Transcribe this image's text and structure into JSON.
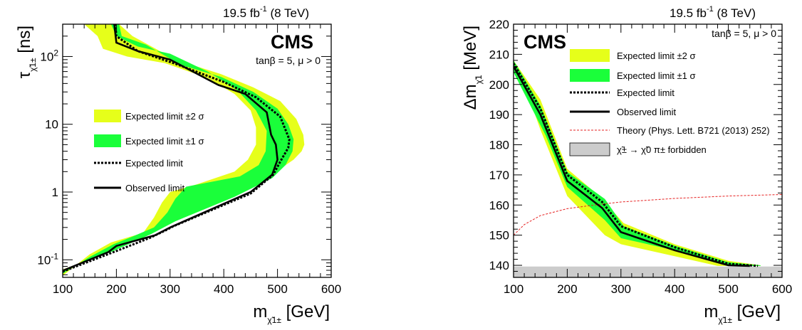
{
  "colors": {
    "band2": "#e6ff1a",
    "band1": "#1aff3a",
    "theory": "#e62020",
    "forbidden": "#cccccc",
    "line": "#000000"
  },
  "chart_data": [
    {
      "type": "line",
      "lumi": "19.5 fb-1 (8 TeV)",
      "lumi_main": "19.5 fb",
      "lumi_exp": "-1",
      "lumi_tail": " (8 TeV)",
      "cms_label": "CMS",
      "annotation": "tanβ = 5, μ > 0",
      "xlabel": "m_{χ̃1±} [GeV]",
      "xlabel_main": "m",
      "xlabel_sub": "χ̃1±",
      "xlabel_unit": " [GeV]",
      "ylabel": "τ_{χ̃1±} [ns]",
      "ylabel_main": "τ",
      "ylabel_sub": "χ̃1±",
      "ylabel_unit": " [ns]",
      "xlim": [
        100,
        600
      ],
      "ylim": [
        0.055,
        300
      ],
      "yscale": "log",
      "x_ticks": [
        "100",
        "200",
        "300",
        "400",
        "500",
        "600"
      ],
      "y_ticks": [
        {
          "value": 0.1,
          "base": "10",
          "exp": "-1"
        },
        {
          "value": 1,
          "label": "1"
        },
        {
          "value": 10,
          "label": "10"
        },
        {
          "value": 100,
          "base": "10",
          "exp": "2"
        }
      ],
      "legend": [
        "Expected limit ±2 σ",
        "Expected limit ±1 σ",
        "Expected limit",
        "Observed limit"
      ],
      "band2_outer": [
        [
          100,
          0.072
        ],
        [
          150,
          0.1
        ],
        [
          195,
          0.14
        ],
        [
          260,
          0.26
        ],
        [
          310,
          0.4
        ],
        [
          380,
          0.7
        ],
        [
          450,
          1.3
        ],
        [
          505,
          2.2
        ],
        [
          530,
          3
        ],
        [
          545,
          4
        ],
        [
          550,
          5
        ],
        [
          548,
          7
        ],
        [
          535,
          12
        ],
        [
          505,
          22
        ],
        [
          455,
          35
        ],
        [
          395,
          55
        ],
        [
          310,
          90
        ],
        [
          230,
          200
        ],
        [
          205,
          300
        ]
      ],
      "band2_inner": [
        [
          140,
          300
        ],
        [
          165,
          200
        ],
        [
          175,
          130
        ],
        [
          220,
          100
        ],
        [
          290,
          80
        ],
        [
          370,
          48
        ],
        [
          420,
          28
        ],
        [
          450,
          16
        ],
        [
          460,
          9
        ],
        [
          460,
          5
        ],
        [
          445,
          3
        ],
        [
          420,
          2
        ],
        [
          350,
          1.3
        ],
        [
          300,
          1.0
        ],
        [
          285,
          0.7
        ],
        [
          270,
          0.42
        ],
        [
          250,
          0.25
        ],
        [
          190,
          0.18
        ],
        [
          150,
          0.12
        ],
        [
          100,
          0.058
        ]
      ],
      "band1_outer": [
        [
          100,
          0.07
        ],
        [
          195,
          0.135
        ],
        [
          265,
          0.24
        ],
        [
          310,
          0.37
        ],
        [
          420,
          0.85
        ],
        [
          490,
          1.6
        ],
        [
          515,
          2.5
        ],
        [
          528,
          4
        ],
        [
          530,
          6
        ],
        [
          520,
          10
        ],
        [
          500,
          17
        ],
        [
          455,
          30
        ],
        [
          395,
          50
        ],
        [
          320,
          75
        ],
        [
          255,
          150
        ],
        [
          210,
          200
        ],
        [
          205,
          300
        ]
      ],
      "band1_inner": [
        [
          190,
          300
        ],
        [
          200,
          200
        ],
        [
          240,
          140
        ],
        [
          300,
          110
        ],
        [
          370,
          60
        ],
        [
          425,
          32
        ],
        [
          460,
          16
        ],
        [
          480,
          8
        ],
        [
          478,
          4
        ],
        [
          465,
          2.5
        ],
        [
          430,
          1.7
        ],
        [
          330,
          1.2
        ],
        [
          310,
          0.8
        ],
        [
          295,
          0.5
        ],
        [
          270,
          0.3
        ],
        [
          230,
          0.22
        ],
        [
          195,
          0.17
        ],
        [
          150,
          0.11
        ],
        [
          100,
          0.062
        ]
      ],
      "expected": [
        [
          100,
          0.067
        ],
        [
          195,
          0.13
        ],
        [
          262,
          0.21
        ],
        [
          295,
          0.28
        ],
        [
          305,
          0.31
        ],
        [
          450,
          0.95
        ],
        [
          492,
          1.8
        ],
        [
          505,
          2.8
        ],
        [
          520,
          4.5
        ],
        [
          522,
          6
        ],
        [
          505,
          13
        ],
        [
          460,
          25
        ],
        [
          400,
          42
        ],
        [
          310,
          78
        ],
        [
          240,
          120
        ],
        [
          200,
          200
        ],
        [
          198,
          300
        ]
      ],
      "observed": [
        [
          100,
          0.069
        ],
        [
          185,
          0.13
        ],
        [
          200,
          0.16
        ],
        [
          272,
          0.23
        ],
        [
          300,
          0.3
        ],
        [
          450,
          1.0
        ],
        [
          490,
          1.8
        ],
        [
          500,
          3
        ],
        [
          497,
          5
        ],
        [
          488,
          7
        ],
        [
          480,
          15
        ],
        [
          440,
          28
        ],
        [
          390,
          38
        ],
        [
          300,
          90
        ],
        [
          240,
          120
        ],
        [
          200,
          160
        ],
        [
          196,
          300
        ]
      ]
    },
    {
      "type": "line",
      "lumi": "19.5 fb-1 (8 TeV)",
      "lumi_main": "19.5 fb",
      "lumi_exp": "-1",
      "lumi_tail": " (8 TeV)",
      "cms_label": "CMS",
      "annotation": "tanβ = 5, μ > 0",
      "xlabel": "m_{χ̃1±} [GeV]",
      "xlabel_main": "m",
      "xlabel_sub": "χ̃1±",
      "xlabel_unit": " [GeV]",
      "ylabel": "Δm_{χ̃1} [MeV]",
      "ylabel_main": "Δm",
      "ylabel_sub": "χ̃1",
      "ylabel_unit": " [MeV]",
      "xlim": [
        100,
        600
      ],
      "ylim": [
        136,
        220
      ],
      "yscale": "linear",
      "x_ticks": [
        "100",
        "200",
        "300",
        "400",
        "500",
        "600"
      ],
      "y_ticks": [
        "140",
        "150",
        "160",
        "170",
        "180",
        "190",
        "200",
        "210",
        "220"
      ],
      "legend": [
        "Expected limit ±2 σ",
        "Expected limit ±1 σ",
        "Expected limit",
        "Observed limit",
        "Theory (Phys. Lett. B721 (2013) 252)",
        "χ̃± → χ̃0 π± forbidden"
      ],
      "forbidden_band": [
        136,
        139.6
      ],
      "band2_outer": [
        [
          100,
          208
        ],
        [
          150,
          195
        ],
        [
          200,
          172
        ],
        [
          260,
          163
        ],
        [
          305,
          154
        ],
        [
          400,
          147
        ],
        [
          500,
          141.5
        ],
        [
          560,
          140
        ]
      ],
      "band2_inner": [
        [
          560,
          139.8
        ],
        [
          480,
          139.8
        ],
        [
          400,
          143
        ],
        [
          300,
          147
        ],
        [
          270,
          150
        ],
        [
          200,
          163
        ],
        [
          150,
          185
        ],
        [
          130,
          195
        ],
        [
          100,
          205
        ]
      ],
      "band1_outer": [
        [
          100,
          208
        ],
        [
          150,
          193
        ],
        [
          200,
          171
        ],
        [
          270,
          162
        ],
        [
          305,
          153
        ],
        [
          400,
          146.5
        ],
        [
          500,
          141
        ],
        [
          560,
          140
        ]
      ],
      "band1_inner": [
        [
          560,
          139.8
        ],
        [
          500,
          139.8
        ],
        [
          400,
          145
        ],
        [
          300,
          149
        ],
        [
          270,
          155
        ],
        [
          200,
          166
        ],
        [
          160,
          183
        ],
        [
          100,
          204
        ]
      ],
      "expected": [
        [
          100,
          207
        ],
        [
          150,
          192
        ],
        [
          200,
          170
        ],
        [
          265,
          161
        ],
        [
          300,
          153
        ],
        [
          400,
          146
        ],
        [
          500,
          140.5
        ],
        [
          555,
          139.8
        ]
      ],
      "observed": [
        [
          100,
          206
        ],
        [
          150,
          190
        ],
        [
          200,
          168
        ],
        [
          265,
          159
        ],
        [
          300,
          151
        ],
        [
          400,
          145
        ],
        [
          500,
          140
        ],
        [
          540,
          139.8
        ]
      ],
      "theory": [
        [
          100,
          150
        ],
        [
          120,
          153.5
        ],
        [
          150,
          156.5
        ],
        [
          200,
          158.8
        ],
        [
          250,
          160
        ],
        [
          300,
          161
        ],
        [
          400,
          162.2
        ],
        [
          500,
          163
        ],
        [
          600,
          163.5
        ]
      ]
    }
  ]
}
